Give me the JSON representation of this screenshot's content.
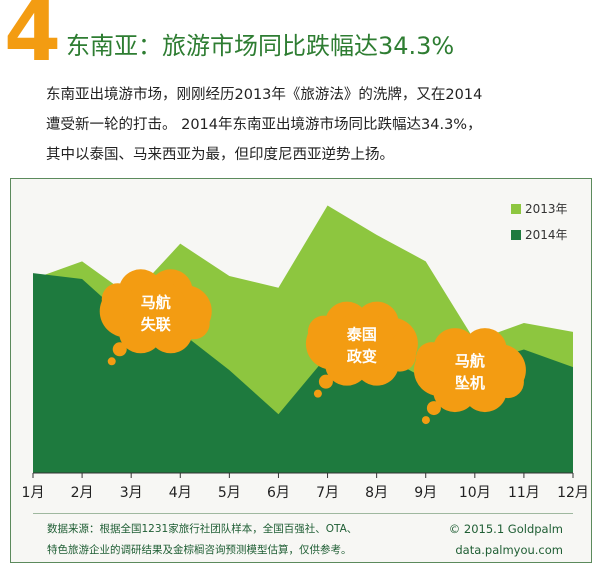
{
  "header": {
    "number": "4",
    "title": "东南亚：旅游市场同比跌幅达34.3%"
  },
  "intro": {
    "line1": "东南亚出境游市场，刚刚经历2013年《旅游法》的洗牌，又在2014",
    "line2": "遭受新一轮的打击。 2014年东南亚出境游市场同比跌幅达34.3%，",
    "line3": "其中以泰国、马来西亚为最，但印度尼西亚逆势上扬。"
  },
  "colors": {
    "series_2013": "#8dc63f",
    "series_2014": "#1e7a3e",
    "bubble": "#f39c12",
    "accent_number": "#f39c12",
    "title_green": "#2e7d32"
  },
  "chart_data": {
    "type": "area",
    "categories": [
      "1月",
      "2月",
      "3月",
      "4月",
      "5月",
      "6月",
      "7月",
      "8月",
      "9月",
      "10月",
      "11月",
      "12月"
    ],
    "series": [
      {
        "name": "2013年",
        "values": [
          66,
          72,
          60,
          78,
          67,
          63,
          91,
          81,
          72,
          45,
          51,
          48
        ]
      },
      {
        "name": "2014年",
        "values": [
          68,
          66,
          51,
          48,
          35,
          20,
          40,
          41,
          32,
          37,
          42,
          36
        ]
      }
    ],
    "ylim": [
      0,
      100
    ],
    "legend_position": "top-right",
    "grid": false,
    "annotations": [
      {
        "text": [
          "马航",
          "失联"
        ],
        "x": 3.5,
        "y": 55
      },
      {
        "text": [
          "泰国",
          "政变"
        ],
        "x": 7.7,
        "y": 44
      },
      {
        "text": [
          "马航",
          "坠机"
        ],
        "x": 9.9,
        "y": 35
      }
    ]
  },
  "footer": {
    "source_line1": "数据来源：根据全国1231家旅行社团队样本，全国百强社、OTA、",
    "source_line2": "特色旅游企业的调研结果及金棕榈咨询预测模型估算，仅供参考。",
    "copyright": "© 2015.1 Goldpalm",
    "website": "data.palmyou.com"
  }
}
